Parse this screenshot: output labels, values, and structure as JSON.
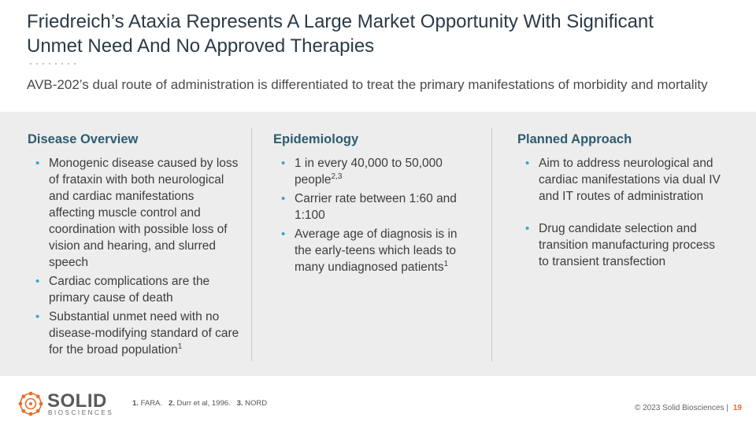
{
  "header": {
    "title_line1": "Friedreich’s Ataxia Represents A Large Market Opportunity With Significant",
    "title_line2": "Unmet Need And No Approved Therapies",
    "subtitle": "AVB-202’s dual route of administration is differentiated to treat the primary manifestations of morbidity and mortality"
  },
  "columns": [
    {
      "heading": "Disease Overview",
      "items": [
        {
          "text": "Monogenic disease caused by loss of frataxin with both neurological and cardiac manifestations affecting muscle control and coordination with possible loss of vision and hearing, and slurred speech",
          "sup": ""
        },
        {
          "text": "Cardiac complications are the primary cause of death",
          "sup": ""
        },
        {
          "text": "Substantial unmet need with no disease-modifying standard of care for the broad population",
          "sup": "1"
        }
      ]
    },
    {
      "heading": "Epidemiology",
      "items": [
        {
          "text": "1 in every 40,000 to 50,000 people",
          "sup": "2,3"
        },
        {
          "text": "Carrier rate between 1:60 and 1:100",
          "sup": ""
        },
        {
          "text": "Average age of diagnosis is in the early-teens which leads to many undiagnosed patients",
          "sup": "1"
        }
      ]
    },
    {
      "heading": "Planned Approach",
      "items": [
        {
          "text": "Aim to address neurological and cardiac manifestations via dual IV and IT routes of administration",
          "sup": ""
        },
        {
          "text": "Drug candidate selection and transition manufacturing process to transient transfection",
          "sup": ""
        }
      ]
    }
  ],
  "bullet_glyph": "•",
  "footer": {
    "logo_main": "SOLID",
    "logo_sub": "BIOSCIENCES",
    "footnotes": [
      {
        "num": "1.",
        "text": "FARA."
      },
      {
        "num": "2.",
        "text": "Durr et al, 1996."
      },
      {
        "num": "3.",
        "text": "NORD"
      }
    ],
    "copyright": "© 2023 Solid Biosciences |",
    "page_number": "19"
  },
  "colors": {
    "title": "#2b3a47",
    "heading": "#2f5c6e",
    "bullet": "#2fa7c6",
    "panel": "#ededed",
    "accent": "#e36f2c"
  }
}
